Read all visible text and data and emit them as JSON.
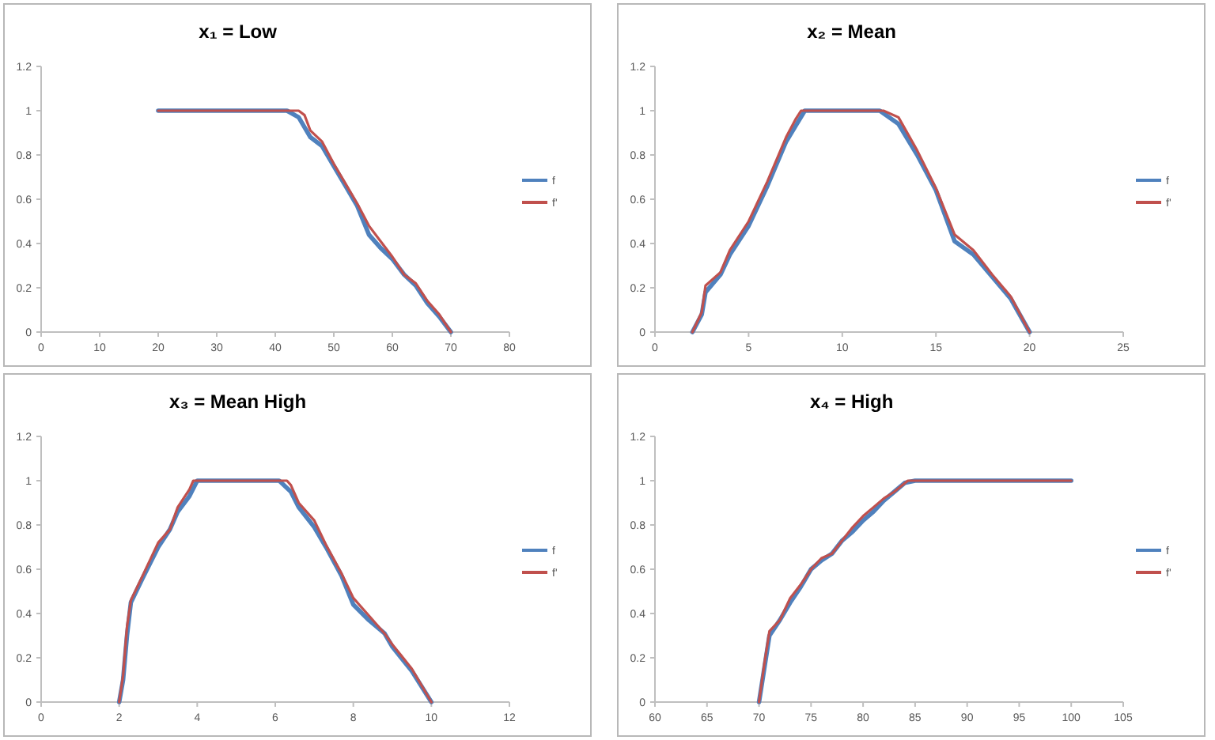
{
  "chart_data": [
    {
      "type": "line",
      "title": "x₁ = Low",
      "xlim": [
        0,
        80
      ],
      "xticks": [
        0,
        10,
        20,
        30,
        40,
        50,
        60,
        70,
        80
      ],
      "ylim": [
        0,
        1.2
      ],
      "yticks": [
        0,
        0.2,
        0.4,
        0.6,
        0.8,
        1,
        1.2
      ],
      "grid": false,
      "legend": "right",
      "line_style": "solid",
      "marker": "none",
      "series": [
        {
          "name": "f",
          "color": "#4f81bd",
          "x": [
            20,
            42,
            44,
            46,
            48,
            50,
            52,
            54,
            56,
            58,
            60,
            62,
            64,
            66,
            68,
            70
          ],
          "values": [
            1,
            1,
            0.97,
            0.88,
            0.84,
            0.75,
            0.66,
            0.57,
            0.44,
            0.38,
            0.33,
            0.26,
            0.21,
            0.13,
            0.07,
            0
          ]
        },
        {
          "name": "f'",
          "color": "#c0504d",
          "x": [
            20,
            44,
            45,
            46,
            48,
            50,
            52,
            54,
            56,
            58,
            60,
            62,
            64,
            66,
            68,
            70
          ],
          "values": [
            1,
            1,
            0.98,
            0.91,
            0.86,
            0.76,
            0.67,
            0.58,
            0.48,
            0.41,
            0.34,
            0.26,
            0.22,
            0.14,
            0.08,
            0
          ]
        }
      ]
    },
    {
      "type": "line",
      "title": "x₂ = Mean",
      "xlim": [
        0,
        25
      ],
      "xticks": [
        0,
        5,
        10,
        15,
        20,
        25
      ],
      "ylim": [
        0,
        1.2
      ],
      "yticks": [
        0,
        0.2,
        0.4,
        0.6,
        0.8,
        1,
        1.2
      ],
      "grid": false,
      "legend": "right",
      "line_style": "solid",
      "marker": "none",
      "series": [
        {
          "name": "f",
          "color": "#4f81bd",
          "x": [
            2,
            2.5,
            2.7,
            3.5,
            4,
            5,
            6,
            7,
            7.5,
            8,
            12,
            13,
            14,
            15,
            16,
            17,
            18,
            19,
            20
          ],
          "values": [
            0,
            0.08,
            0.18,
            0.26,
            0.35,
            0.48,
            0.66,
            0.86,
            0.93,
            1,
            1,
            0.94,
            0.8,
            0.64,
            0.41,
            0.35,
            0.25,
            0.15,
            0
          ]
        },
        {
          "name": "f'",
          "color": "#c0504d",
          "x": [
            2,
            2.5,
            2.7,
            3.5,
            4,
            5,
            6,
            7,
            7.5,
            7.8,
            12.2,
            13,
            14,
            15,
            16,
            17,
            18,
            19,
            20
          ],
          "values": [
            0,
            0.09,
            0.21,
            0.27,
            0.37,
            0.5,
            0.68,
            0.88,
            0.96,
            1,
            1,
            0.97,
            0.82,
            0.65,
            0.44,
            0.37,
            0.26,
            0.16,
            0
          ]
        }
      ]
    },
    {
      "type": "line",
      "title": "x₃ = Mean High",
      "xlim": [
        0,
        12
      ],
      "xticks": [
        0,
        2,
        4,
        6,
        8,
        10,
        12
      ],
      "ylim": [
        0,
        1.2
      ],
      "yticks": [
        0,
        0.2,
        0.4,
        0.6,
        0.8,
        1,
        1.2
      ],
      "grid": false,
      "legend": "right",
      "line_style": "solid",
      "marker": "none",
      "series": [
        {
          "name": "f",
          "color": "#4f81bd",
          "x": [
            2,
            2.1,
            2.2,
            2.3,
            2.6,
            3,
            3.3,
            3.5,
            3.8,
            4,
            6.1,
            6.4,
            6.6,
            7,
            7.3,
            7.7,
            8,
            8.4,
            8.8,
            9,
            9.5,
            10
          ],
          "values": [
            0,
            0.1,
            0.3,
            0.45,
            0.56,
            0.7,
            0.78,
            0.86,
            0.93,
            1,
            1,
            0.95,
            0.88,
            0.79,
            0.7,
            0.57,
            0.44,
            0.37,
            0.31,
            0.25,
            0.14,
            0
          ]
        },
        {
          "name": "f'",
          "color": "#c0504d",
          "x": [
            2,
            2.1,
            2.2,
            2.3,
            2.6,
            3,
            3.3,
            3.5,
            3.8,
            3.9,
            6.3,
            6.4,
            6.6,
            7,
            7.3,
            7.7,
            8,
            8.4,
            8.8,
            9,
            9.5,
            10
          ],
          "values": [
            0,
            0.12,
            0.34,
            0.46,
            0.57,
            0.72,
            0.78,
            0.88,
            0.96,
            1,
            1,
            0.98,
            0.9,
            0.82,
            0.71,
            0.58,
            0.47,
            0.39,
            0.31,
            0.26,
            0.15,
            0
          ]
        }
      ]
    },
    {
      "type": "line",
      "title": "x₄ = High",
      "xlim": [
        60,
        105
      ],
      "xticks": [
        60,
        65,
        70,
        75,
        80,
        85,
        90,
        95,
        100,
        105
      ],
      "ylim": [
        0,
        1.2
      ],
      "yticks": [
        0,
        0.2,
        0.4,
        0.6,
        0.8,
        1,
        1.2
      ],
      "grid": false,
      "legend": "right",
      "line_style": "solid",
      "marker": "none",
      "series": [
        {
          "name": "f",
          "color": "#4f81bd",
          "x": [
            70,
            70.5,
            71,
            72,
            73,
            74,
            75,
            76,
            77,
            78,
            79,
            80,
            81,
            82,
            83,
            84,
            85,
            100
          ],
          "values": [
            0,
            0.15,
            0.3,
            0.37,
            0.45,
            0.52,
            0.6,
            0.64,
            0.67,
            0.73,
            0.77,
            0.82,
            0.86,
            0.91,
            0.95,
            0.99,
            1,
            1
          ]
        },
        {
          "name": "f'",
          "color": "#c0504d",
          "x": [
            70,
            70.5,
            71,
            72,
            73,
            74,
            75,
            76,
            77,
            78,
            79,
            80,
            81,
            82,
            83,
            84.3,
            100
          ],
          "values": [
            0,
            0.17,
            0.32,
            0.37,
            0.47,
            0.53,
            0.6,
            0.65,
            0.67,
            0.73,
            0.79,
            0.84,
            0.88,
            0.92,
            0.95,
            1,
            1
          ]
        }
      ]
    }
  ]
}
